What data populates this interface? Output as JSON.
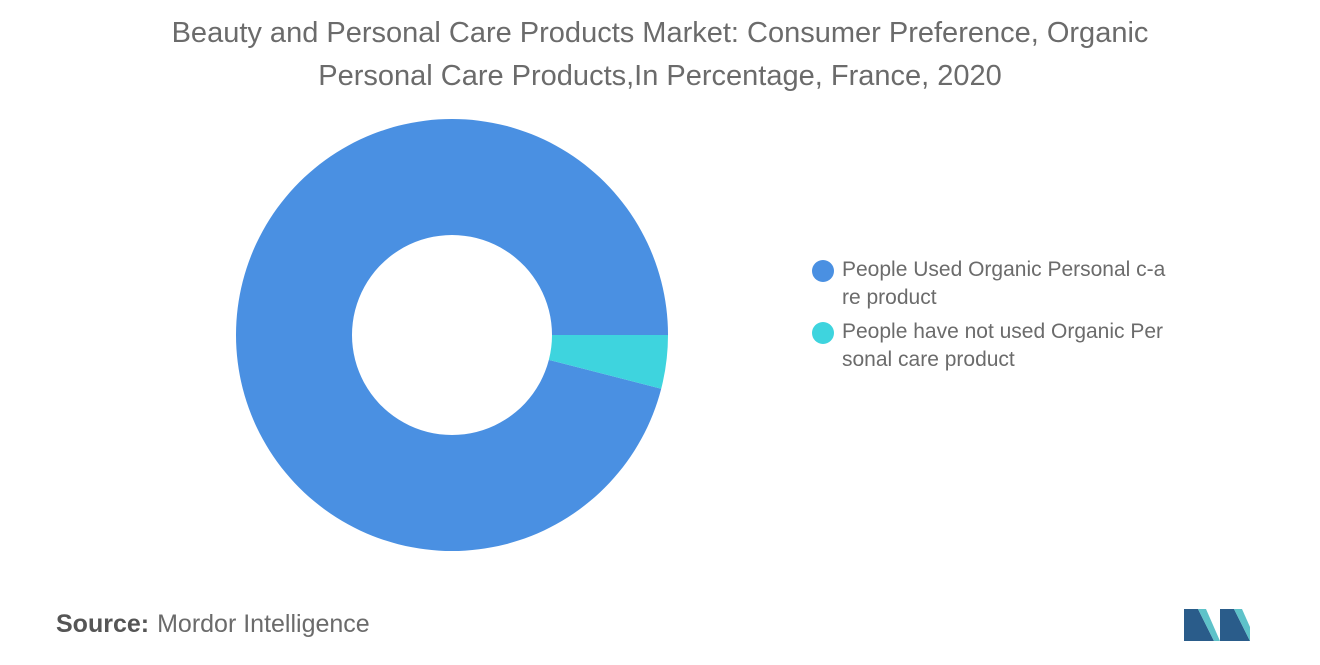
{
  "chart_data": {
    "type": "pie",
    "donut": true,
    "title_lines": [
      "Beauty and Personal Care Products Market: Consumer Preference, Organic",
      "Personal Care Products,In Percentage, France, 2020"
    ],
    "slices": [
      {
        "label": "People Used Organic Personal c-are product",
        "value": 96,
        "color": "#4a90e2"
      },
      {
        "label": "People have not used Organic Personal care product",
        "value": 4,
        "color": "#3ed4de"
      }
    ],
    "legend_position": "right"
  },
  "source": {
    "label": "Source:",
    "value": "Mordor Intelligence"
  },
  "logo": {
    "icon": "mordor-intelligence-logo-icon",
    "colors": [
      "#2a5c8a",
      "#5ec2c9"
    ]
  }
}
